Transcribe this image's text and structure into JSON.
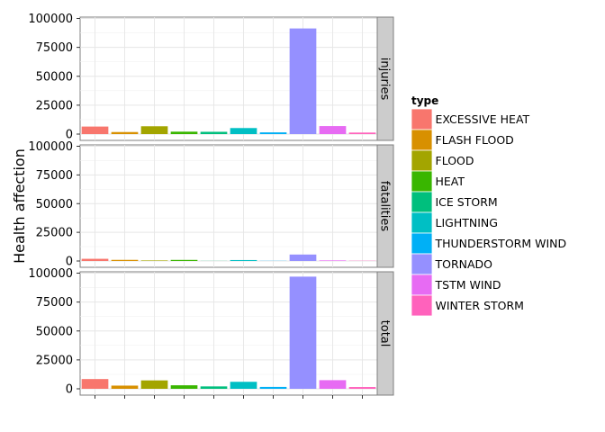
{
  "chart_data": {
    "type": "bar",
    "ylabel": "Health affection",
    "xlabel": "",
    "legend": {
      "title": "type",
      "placement": "right"
    },
    "categories": [
      "EXCESSIVE HEAT",
      "FLASH FLOOD",
      "FLOOD",
      "HEAT",
      "ICE STORM",
      "LIGHTNING",
      "THUNDERSTORM WIND",
      "TORNADO",
      "TSTM WIND",
      "WINTER STORM"
    ],
    "colors": [
      "#F8766D",
      "#D89000",
      "#A3A500",
      "#39B600",
      "#00BF7D",
      "#00BFC4",
      "#00B0F6",
      "#9590FF",
      "#E76BF3",
      "#FF62BC"
    ],
    "ylim": [
      0,
      100000
    ],
    "yticks": [
      "0",
      "25000",
      "50000",
      "75000",
      "100000"
    ],
    "facets": [
      {
        "label": "injuries",
        "values": [
          6525,
          1777,
          6789,
          2100,
          1975,
          5230,
          1488,
          91346,
          6957,
          1321
        ]
      },
      {
        "label": "fatalities",
        "values": [
          1903,
          978,
          470,
          937,
          89,
          816,
          133,
          5633,
          504,
          206
        ]
      },
      {
        "label": "total",
        "values": [
          8428,
          2755,
          7259,
          3037,
          2064,
          6046,
          1621,
          96979,
          7461,
          1527
        ]
      }
    ],
    "grid": true
  }
}
